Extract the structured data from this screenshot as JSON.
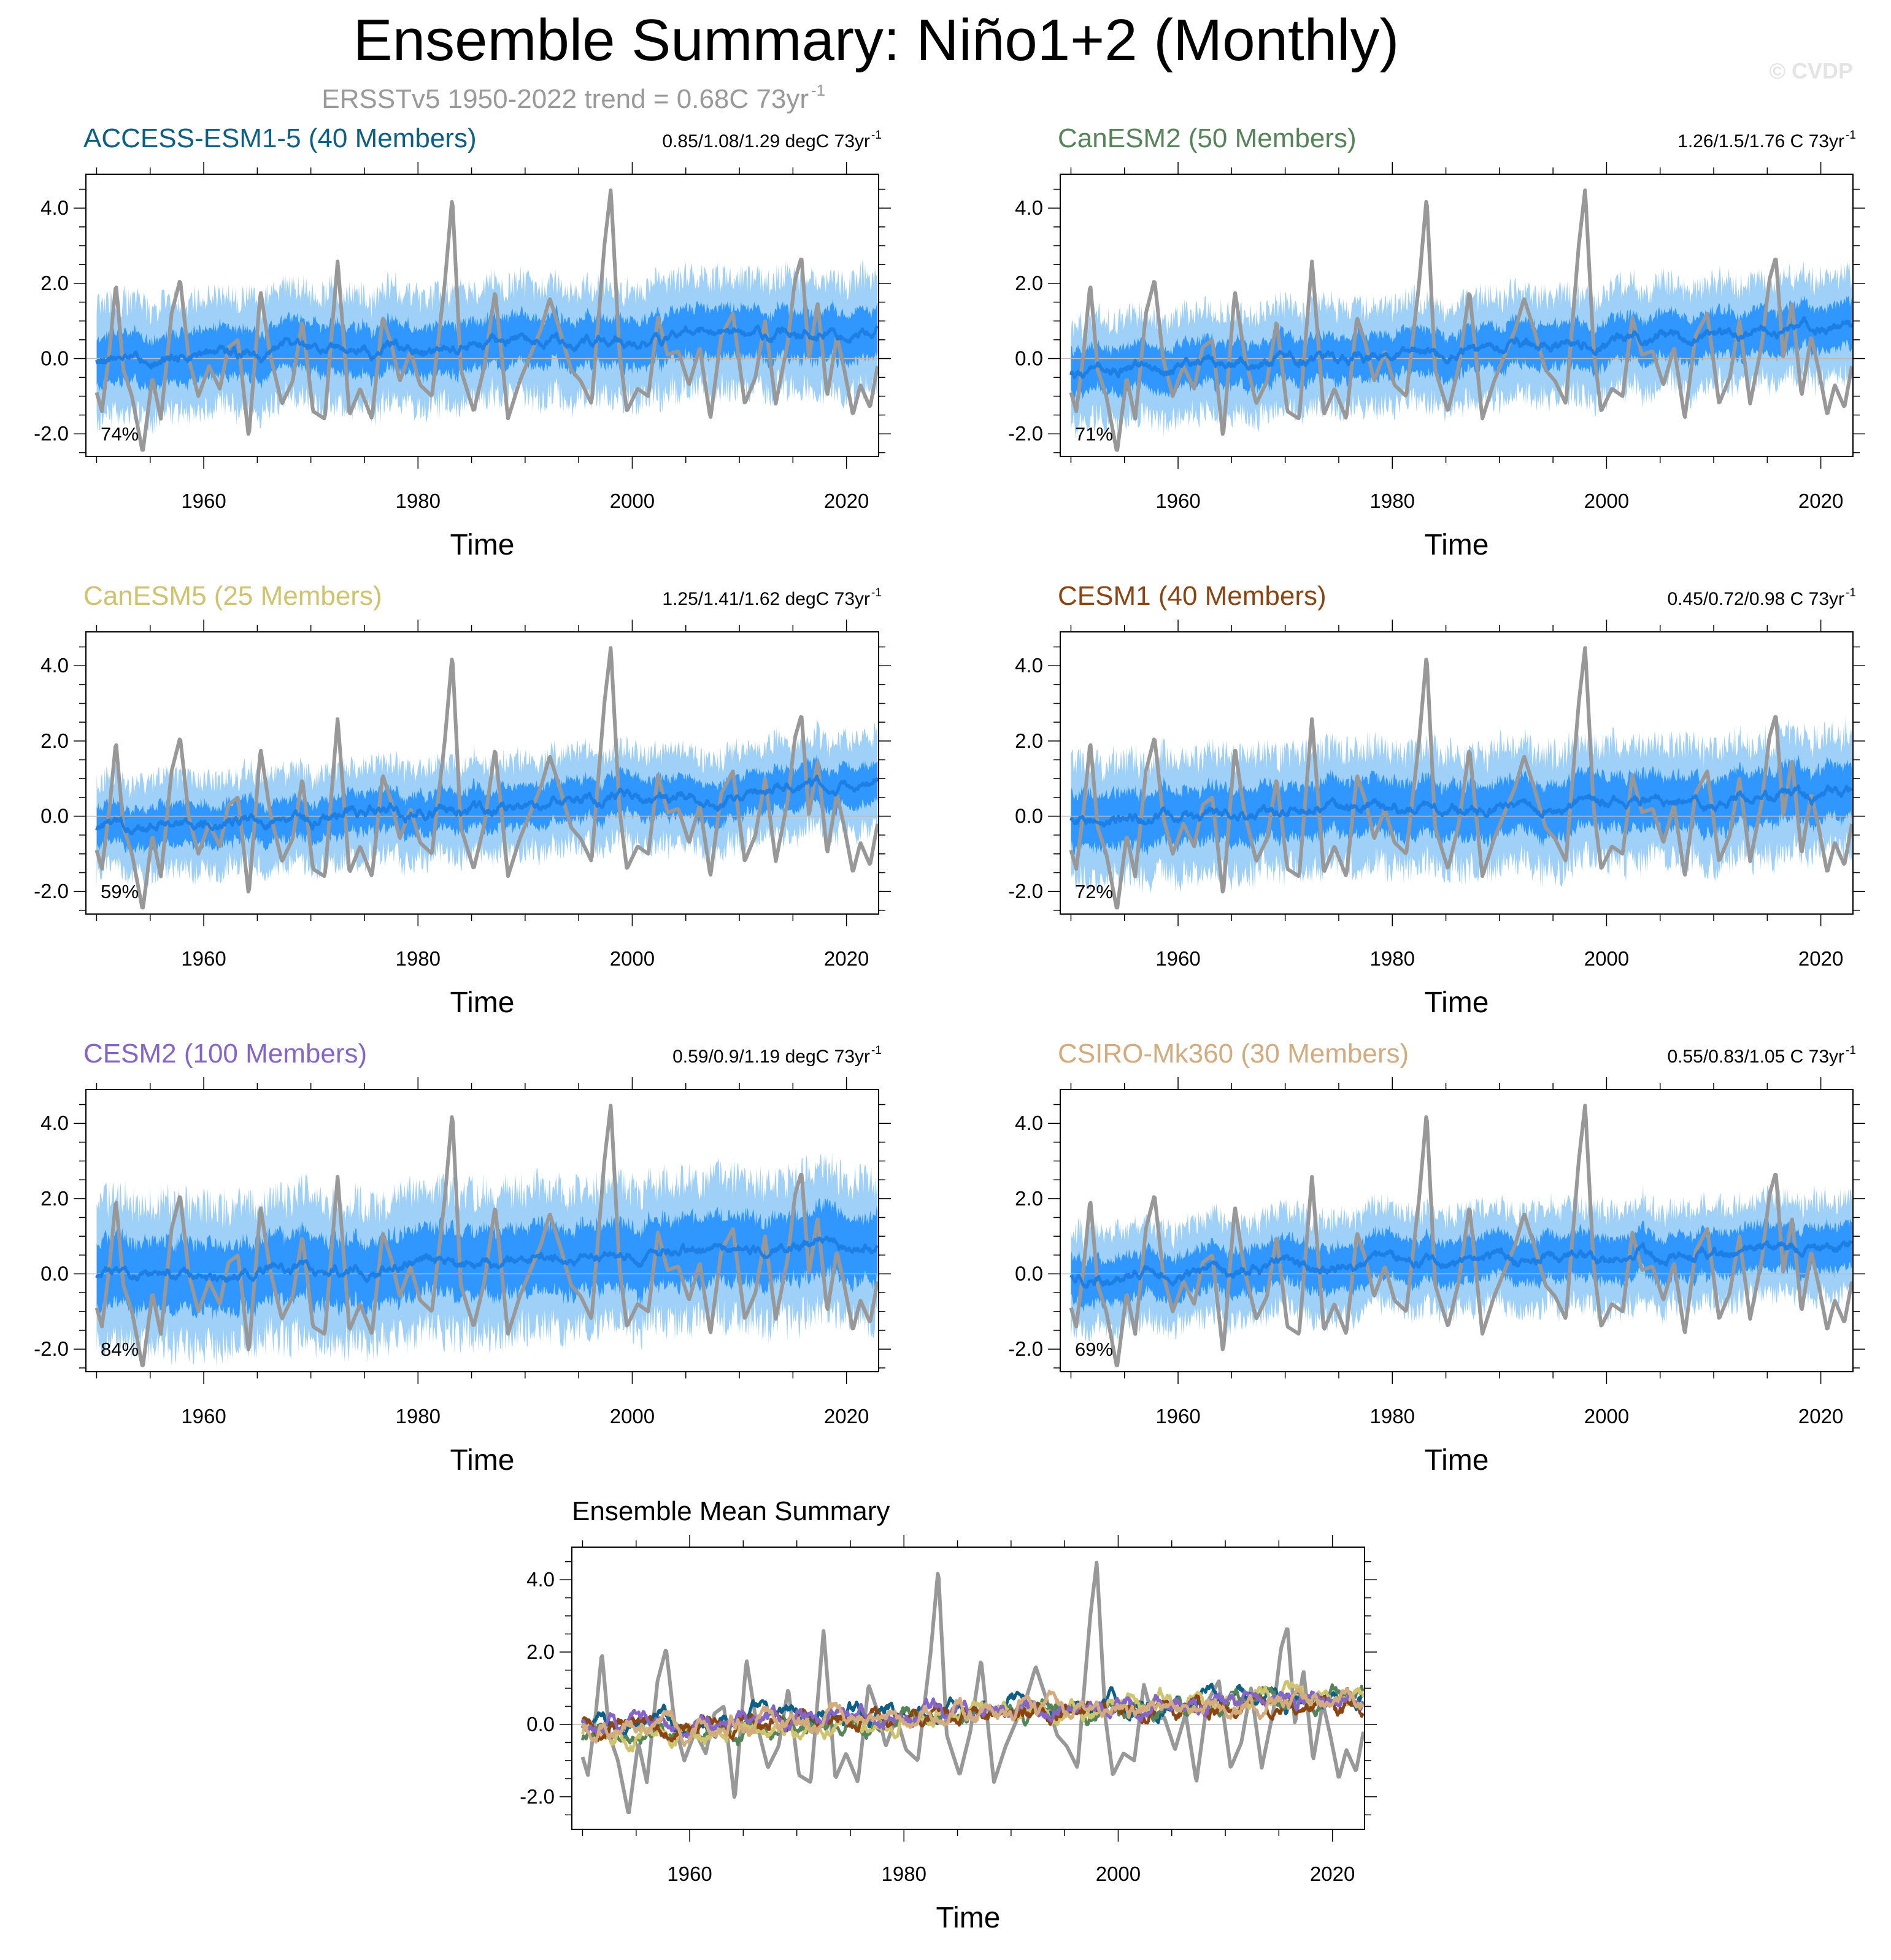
{
  "title": "Ensemble Summary: Niño1+2 (Monthly)",
  "subtitle": {
    "text": "ERSSTv5 1950-2022 trend = 0.68C 73yr",
    "sup": "-1"
  },
  "watermark": "© CVDP",
  "chart_data": [
    {
      "type": "line",
      "title": "ACCESS-ESM1-5 (40 Members)",
      "title_color": "#0d5f86",
      "stat": "0.85/1.08/1.29 degC 73yr",
      "stat_sup": "-1",
      "start": [
        0.0,
        0.85
      ],
      "end": [
        0.75,
        1.29
      ],
      "pct": "74%",
      "inner_halfwidth": 0.55,
      "outer_halfwidth": 1.15,
      "xlabel": "Time",
      "xlim": [
        1949,
        2023
      ],
      "ylim": [
        -2.6,
        4.9
      ],
      "xticks": [
        1960,
        1980,
        2000,
        2020
      ],
      "yticks": [
        -2.0,
        0.0,
        2.0,
        4.0
      ]
    },
    {
      "type": "line",
      "title": "CanESM2 (50 Members)",
      "title_color": "#558459",
      "stat": "1.26/1.5/1.76 C 73yr",
      "stat_sup": "-1",
      "start": [
        -0.4,
        1.26
      ],
      "end": [
        0.9,
        1.76
      ],
      "pct": "71%",
      "inner_halfwidth": 0.5,
      "outer_halfwidth": 1.05,
      "xlabel": "Time",
      "xlim": [
        1949,
        2023
      ],
      "ylim": [
        -2.6,
        4.9
      ],
      "xticks": [
        1960,
        1980,
        2000,
        2020
      ],
      "yticks": [
        -2.0,
        0.0,
        2.0,
        4.0
      ]
    },
    {
      "type": "line",
      "title": "CanESM5 (25 Members)",
      "title_color": "#cfc46d",
      "stat": "1.25/1.41/1.62 degC 73yr",
      "stat_sup": "-1",
      "start": [
        -0.35,
        1.25
      ],
      "end": [
        0.85,
        1.62
      ],
      "pct": "59%",
      "inner_halfwidth": 0.45,
      "outer_halfwidth": 0.95,
      "xlabel": "Time",
      "xlim": [
        1949,
        2023
      ],
      "ylim": [
        -2.6,
        4.9
      ],
      "xticks": [
        1960,
        1980,
        2000,
        2020
      ],
      "yticks": [
        -2.0,
        0.0,
        2.0,
        4.0
      ]
    },
    {
      "type": "line",
      "title": "CESM1 (40 Members)",
      "title_color": "#8b4513",
      "stat": "0.45/0.72/0.98 C 73yr",
      "stat_sup": "-1",
      "start": [
        -0.1,
        0.45
      ],
      "end": [
        0.6,
        0.98
      ],
      "pct": "72%",
      "inner_halfwidth": 0.6,
      "outer_halfwidth": 1.2,
      "xlabel": "Time",
      "xlim": [
        1949,
        2023
      ],
      "ylim": [
        -2.6,
        4.9
      ],
      "xticks": [
        1960,
        1980,
        2000,
        2020
      ],
      "yticks": [
        -2.0,
        0.0,
        2.0,
        4.0
      ]
    },
    {
      "type": "line",
      "title": "CESM2 (100 Members)",
      "title_color": "#8665c8",
      "stat": "0.59/0.9/1.19 degC 73yr",
      "stat_sup": "-1",
      "start": [
        -0.1,
        0.59
      ],
      "end": [
        0.8,
        1.19
      ],
      "pct": "84%",
      "inner_halfwidth": 0.75,
      "outer_halfwidth": 1.45,
      "xlabel": "Time",
      "xlim": [
        1949,
        2023
      ],
      "ylim": [
        -2.6,
        4.9
      ],
      "xticks": [
        1960,
        1980,
        2000,
        2020
      ],
      "yticks": [
        -2.0,
        0.0,
        2.0,
        4.0
      ]
    },
    {
      "type": "line",
      "title": "CSIRO-Mk360 (30 Members)",
      "title_color": "#d2ab7e",
      "stat": "0.55/0.83/1.05 C 73yr",
      "stat_sup": "-1",
      "start": [
        -0.1,
        0.55
      ],
      "end": [
        0.7,
        1.05
      ],
      "pct": "69%",
      "inner_halfwidth": 0.5,
      "outer_halfwidth": 1.0,
      "xlabel": "Time",
      "xlim": [
        1949,
        2023
      ],
      "ylim": [
        -2.6,
        4.9
      ],
      "xticks": [
        1960,
        1980,
        2000,
        2020
      ],
      "yticks": [
        -2.0,
        0.0,
        2.0,
        4.0
      ]
    },
    {
      "type": "line",
      "title": "Ensemble Mean Summary",
      "title_color": "#000000",
      "xlabel": "Time",
      "xlim": [
        1949,
        2023
      ],
      "ylim": [
        -2.9,
        4.9
      ],
      "xticks": [
        1960,
        1980,
        2000,
        2020
      ],
      "yticks": [
        -2.0,
        0.0,
        2.0,
        4.0
      ],
      "series": [
        {
          "name": "ACCESS-ESM1-5",
          "color": "#0d5f86",
          "start": 0.0,
          "end": 0.75
        },
        {
          "name": "CanESM2",
          "color": "#558459",
          "start": -0.4,
          "end": 0.9
        },
        {
          "name": "CanESM5",
          "color": "#cfc46d",
          "start": -0.35,
          "end": 0.85
        },
        {
          "name": "CESM1",
          "color": "#8b4513",
          "start": -0.1,
          "end": 0.6
        },
        {
          "name": "CESM2",
          "color": "#8665c8",
          "start": -0.1,
          "end": 0.8
        },
        {
          "name": "CSIRO-Mk360",
          "color": "#d2ab7e",
          "start": -0.1,
          "end": 0.7
        }
      ]
    }
  ],
  "observed": {
    "name": "ERSSTv5",
    "color": "#989898",
    "anchors": [
      [
        1949.5,
        -0.4
      ],
      [
        1950.5,
        -1.4
      ],
      [
        1951.2,
        0.2
      ],
      [
        1951.8,
        2.0
      ],
      [
        1952.5,
        -0.3
      ],
      [
        1953.3,
        -1.0
      ],
      [
        1954.3,
        -2.5
      ],
      [
        1955.2,
        -0.5
      ],
      [
        1956.0,
        -1.6
      ],
      [
        1957.0,
        1.2
      ],
      [
        1957.8,
        2.1
      ],
      [
        1958.6,
        0.0
      ],
      [
        1959.5,
        -1.0
      ],
      [
        1960.5,
        -0.2
      ],
      [
        1961.5,
        -0.8
      ],
      [
        1962.3,
        0.3
      ],
      [
        1963.2,
        0.5
      ],
      [
        1964.2,
        -2.1
      ],
      [
        1965.3,
        1.8
      ],
      [
        1966.2,
        0.1
      ],
      [
        1967.3,
        -1.2
      ],
      [
        1968.3,
        -0.6
      ],
      [
        1969.2,
        1.0
      ],
      [
        1970.2,
        -1.4
      ],
      [
        1971.3,
        -1.6
      ],
      [
        1972.5,
        2.6
      ],
      [
        1973.6,
        -1.5
      ],
      [
        1974.6,
        -0.8
      ],
      [
        1975.7,
        -1.6
      ],
      [
        1976.7,
        1.1
      ],
      [
        1977.5,
        0.4
      ],
      [
        1978.3,
        -0.6
      ],
      [
        1979.3,
        0.2
      ],
      [
        1980.2,
        -0.7
      ],
      [
        1981.3,
        -1.0
      ],
      [
        1982.5,
        2.0
      ],
      [
        1983.2,
        4.3
      ],
      [
        1984.0,
        -0.3
      ],
      [
        1985.2,
        -1.4
      ],
      [
        1986.2,
        -0.2
      ],
      [
        1987.2,
        1.8
      ],
      [
        1988.4,
        -1.6
      ],
      [
        1989.5,
        -0.6
      ],
      [
        1990.5,
        0.1
      ],
      [
        1991.5,
        0.8
      ],
      [
        1992.3,
        1.6
      ],
      [
        1993.3,
        0.7
      ],
      [
        1994.3,
        -0.3
      ],
      [
        1995.2,
        -0.6
      ],
      [
        1996.2,
        -1.2
      ],
      [
        1997.4,
        3.0
      ],
      [
        1998.0,
        4.5
      ],
      [
        1998.8,
        0.2
      ],
      [
        1999.5,
        -1.4
      ],
      [
        2000.5,
        -0.8
      ],
      [
        2001.5,
        -1.0
      ],
      [
        2002.4,
        1.1
      ],
      [
        2003.3,
        0.1
      ],
      [
        2004.3,
        0.2
      ],
      [
        2005.3,
        -0.7
      ],
      [
        2006.3,
        0.3
      ],
      [
        2007.3,
        -1.6
      ],
      [
        2008.3,
        0.6
      ],
      [
        2009.4,
        1.2
      ],
      [
        2010.5,
        -1.2
      ],
      [
        2011.5,
        -0.5
      ],
      [
        2012.4,
        1.0
      ],
      [
        2013.4,
        -1.2
      ],
      [
        2014.5,
        0.4
      ],
      [
        2015.2,
        2.1
      ],
      [
        2015.8,
        2.7
      ],
      [
        2016.5,
        0.0
      ],
      [
        2017.3,
        1.5
      ],
      [
        2018.2,
        -1.0
      ],
      [
        2019.1,
        0.6
      ],
      [
        2019.8,
        -0.3
      ],
      [
        2020.6,
        -1.5
      ],
      [
        2021.3,
        -0.7
      ],
      [
        2022.2,
        -1.3
      ],
      [
        2022.9,
        -0.2
      ]
    ]
  }
}
